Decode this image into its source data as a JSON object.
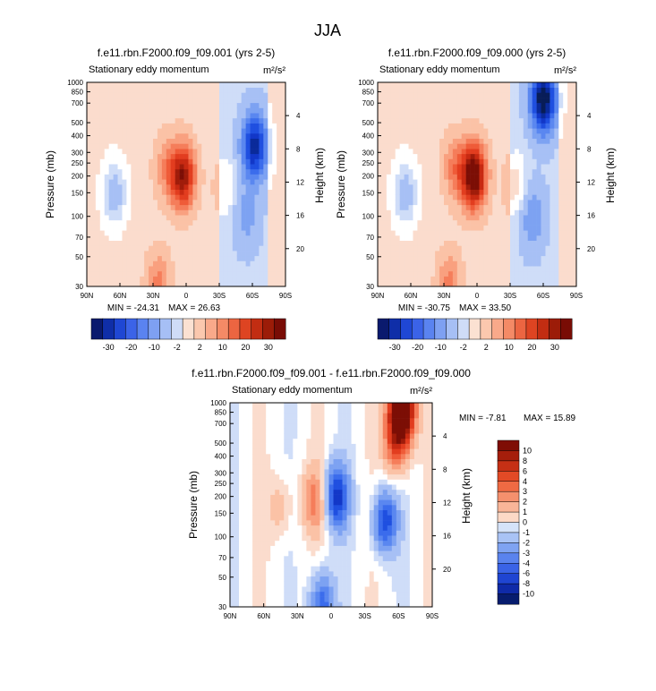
{
  "page_title": "JJA",
  "chart_data": [
    {
      "type": "heatmap",
      "title": "f.e11.rbn.F2000.f09_f09.001 (yrs 2-5)",
      "subtitle_left": "Stationary eddy momentum",
      "units": "m²/s²",
      "xlabel": "",
      "ylabel": "Pressure (mb)",
      "ylabel_right": "Height (km)",
      "x_ticks": [
        "90N",
        "60N",
        "30N",
        "0",
        "30S",
        "60S",
        "90S"
      ],
      "x_range": [
        90,
        -90
      ],
      "y_ticks": [
        "30",
        "50",
        "70",
        "100",
        "150",
        "200",
        "250",
        "300",
        "400",
        "500",
        "700",
        "850",
        "1000"
      ],
      "y_tick_values": [
        30,
        50,
        70,
        100,
        150,
        200,
        250,
        300,
        400,
        500,
        700,
        850,
        1000
      ],
      "y_range": [
        1000,
        30
      ],
      "height_ticks": [
        "20",
        "16",
        "12",
        "8",
        "4"
      ],
      "height_tick_values": [
        20,
        16,
        12,
        8,
        4
      ],
      "min_label": "MIN = -24.31",
      "max_label": "MAX = 26.63",
      "min": -24.31,
      "max": 26.63,
      "colorbar_labels": [
        "-30",
        "-20",
        "-10",
        "-2",
        "2",
        "10",
        "20",
        "30"
      ],
      "features": [
        {
          "lat": 3,
          "p": 150,
          "value": 26.6
        },
        {
          "lat": 18,
          "p": 130,
          "value": 8
        },
        {
          "lat": 65,
          "p": 200,
          "value": -8
        },
        {
          "lat": -62,
          "p": 90,
          "value": -24.3
        },
        {
          "lat": -55,
          "p": 300,
          "value": -6
        },
        {
          "lat": -35,
          "p": 180,
          "value": 4
        },
        {
          "lat": 25,
          "p": 950,
          "value": 10
        }
      ]
    },
    {
      "type": "heatmap",
      "title": "f.e11.rbn.F2000.f09_f09.000 (yrs 2-5)",
      "subtitle_left": "Stationary eddy momentum",
      "units": "m²/s²",
      "xlabel": "",
      "ylabel": "Pressure (mb)",
      "ylabel_right": "Height (km)",
      "x_ticks": [
        "90N",
        "60N",
        "30N",
        "0",
        "30S",
        "60S",
        "90S"
      ],
      "x_range": [
        90,
        -90
      ],
      "y_ticks": [
        "30",
        "50",
        "70",
        "100",
        "150",
        "200",
        "250",
        "300",
        "400",
        "500",
        "700",
        "850",
        "1000"
      ],
      "y_tick_values": [
        30,
        50,
        70,
        100,
        150,
        200,
        250,
        300,
        400,
        500,
        700,
        850,
        1000
      ],
      "y_range": [
        1000,
        30
      ],
      "height_ticks": [
        "20",
        "16",
        "12",
        "8",
        "4"
      ],
      "height_tick_values": [
        20,
        16,
        12,
        8,
        4
      ],
      "min_label": "MIN = -30.75",
      "max_label": "MAX = 33.50",
      "min": -30.75,
      "max": 33.5,
      "colorbar_labels": [
        "-30",
        "-20",
        "-10",
        "-2",
        "2",
        "10",
        "20",
        "30"
      ],
      "features": [
        {
          "lat": 3,
          "p": 150,
          "value": 33.5
        },
        {
          "lat": 20,
          "p": 130,
          "value": 10
        },
        {
          "lat": 65,
          "p": 200,
          "value": -8
        },
        {
          "lat": -60,
          "p": 40,
          "value": -30.75
        },
        {
          "lat": -50,
          "p": 300,
          "value": -8
        },
        {
          "lat": -35,
          "p": 180,
          "value": 6
        },
        {
          "lat": 25,
          "p": 950,
          "value": 10
        }
      ]
    },
    {
      "type": "heatmap",
      "title": "f.e11.rbn.F2000.f09_f09.001 - f.e11.rbn.F2000.f09_f09.000",
      "subtitle_left": "Stationary eddy momentum",
      "units": "m²/s²",
      "xlabel": "",
      "ylabel": "Pressure (mb)",
      "ylabel_right": "Height (km)",
      "x_ticks": [
        "90N",
        "60N",
        "30N",
        "0",
        "30S",
        "60S",
        "90S"
      ],
      "x_range": [
        90,
        -90
      ],
      "y_ticks": [
        "30",
        "50",
        "70",
        "100",
        "150",
        "200",
        "250",
        "300",
        "400",
        "500",
        "700",
        "850",
        "1000"
      ],
      "y_tick_values": [
        30,
        50,
        70,
        100,
        150,
        200,
        250,
        300,
        400,
        500,
        700,
        850,
        1000
      ],
      "y_range": [
        1000,
        30
      ],
      "height_ticks": [
        "20",
        "16",
        "12",
        "8",
        "4"
      ],
      "height_tick_values": [
        20,
        16,
        12,
        8,
        4
      ],
      "min_label": "MIN =  -7.81",
      "max_label": "MAX =  15.89",
      "min": -7.81,
      "max": 15.89,
      "colorbar_labels": [
        "10",
        "8",
        "6",
        "4",
        "3",
        "2",
        "1",
        "0",
        "-1",
        "-2",
        "-3",
        "-4",
        "-6",
        "-8",
        "-10"
      ],
      "features": [
        {
          "lat": -63,
          "p": 32,
          "value": 15.9
        },
        {
          "lat": -58,
          "p": 60,
          "value": 6
        },
        {
          "lat": -5,
          "p": 150,
          "value": -7.8
        },
        {
          "lat": -48,
          "p": 230,
          "value": -7
        },
        {
          "lat": 15,
          "p": 160,
          "value": 4
        },
        {
          "lat": 45,
          "p": 180,
          "value": 2
        },
        {
          "lat": 8,
          "p": 950,
          "value": -6
        }
      ]
    }
  ]
}
